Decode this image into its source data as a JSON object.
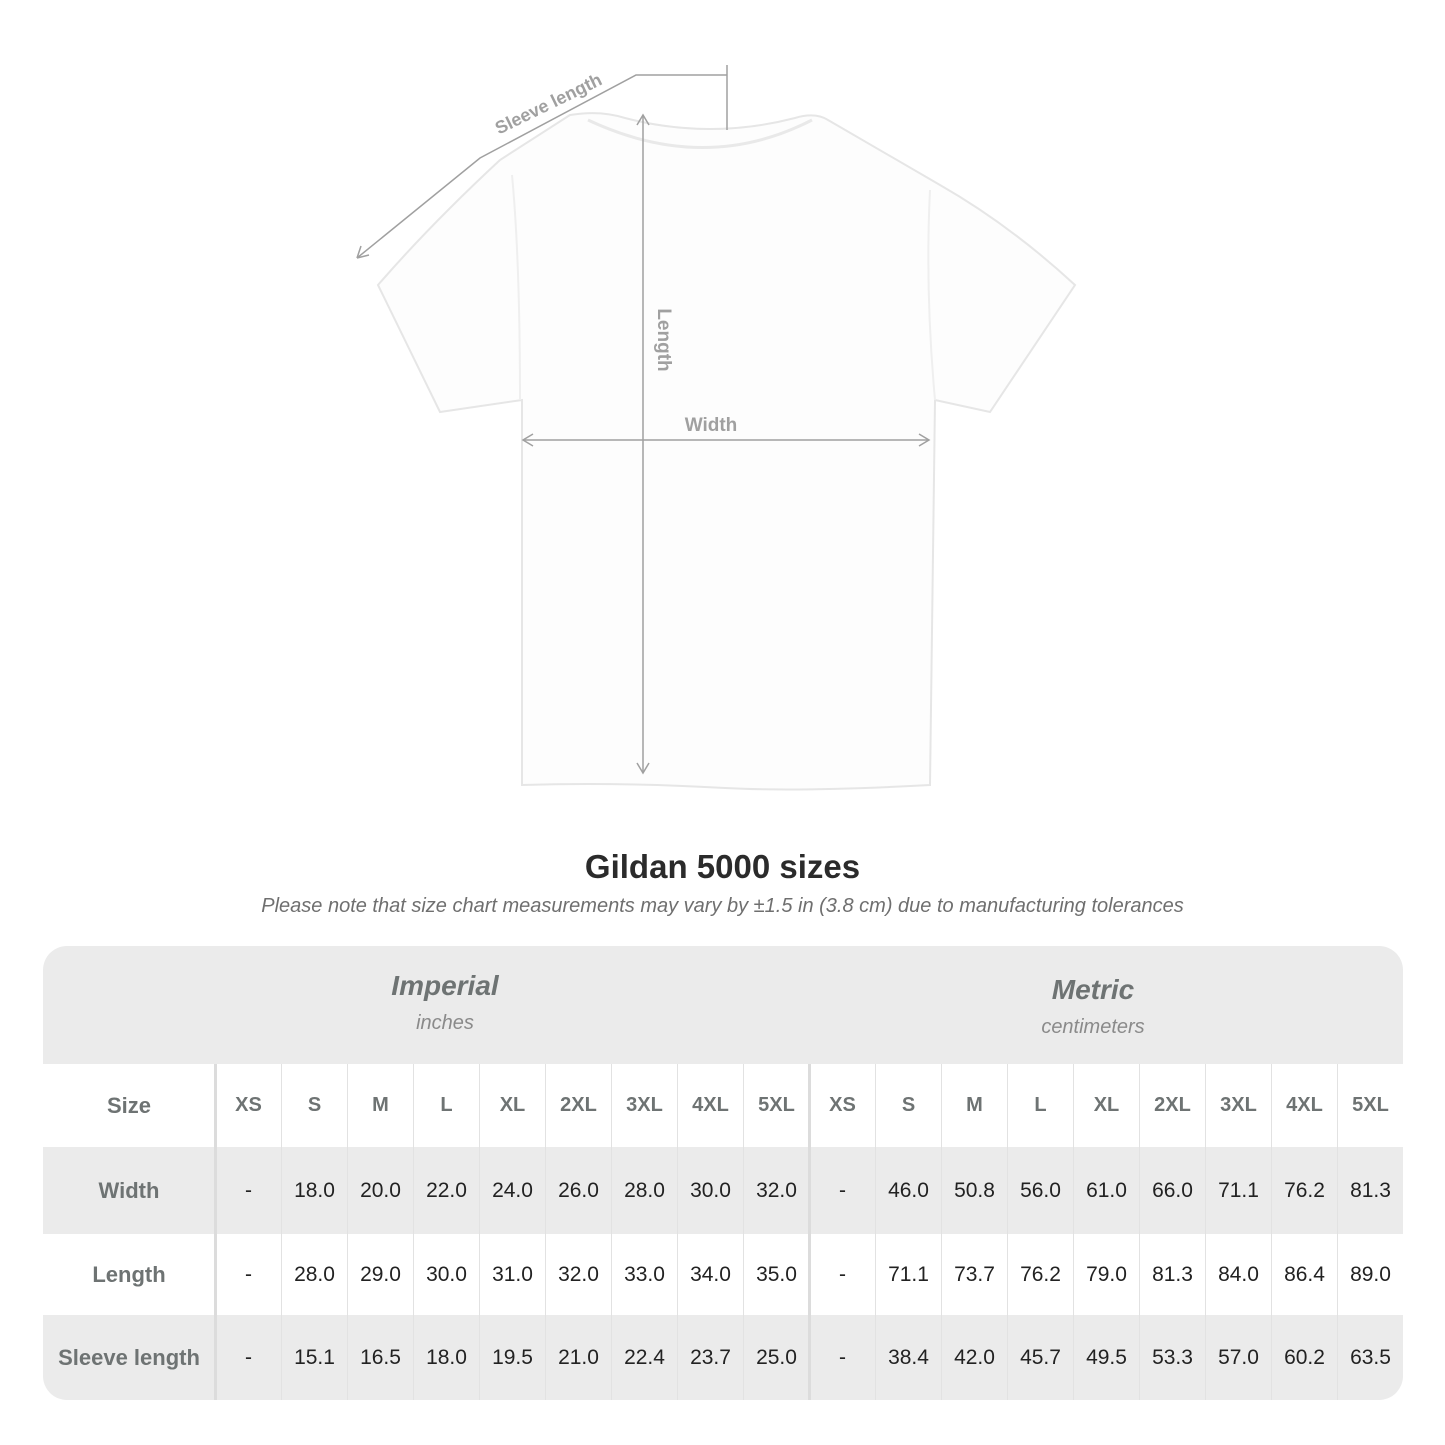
{
  "diagram": {
    "labels": {
      "sleeve": "Sleeve length",
      "length": "Length",
      "width": "Width"
    },
    "line_color": "#a0a0a0"
  },
  "title": "Gildan 5000 sizes",
  "subtitle": "Please note that size chart measurements may vary by ±1.5 in (3.8 cm) due to manufacturing tolerances",
  "table": {
    "imperial": {
      "name": "Imperial",
      "unit": "inches"
    },
    "metric": {
      "name": "Metric",
      "unit": "centimeters"
    },
    "size_label": "Size",
    "sizes": [
      "XS",
      "S",
      "M",
      "L",
      "XL",
      "2XL",
      "3XL",
      "4XL",
      "5XL"
    ],
    "rows": [
      {
        "label": "Width",
        "imperial": [
          "-",
          "18.0",
          "20.0",
          "22.0",
          "24.0",
          "26.0",
          "28.0",
          "30.0",
          "32.0"
        ],
        "metric": [
          "-",
          "46.0",
          "50.8",
          "56.0",
          "61.0",
          "66.0",
          "71.1",
          "76.2",
          "81.3"
        ]
      },
      {
        "label": "Length",
        "imperial": [
          "-",
          "28.0",
          "29.0",
          "30.0",
          "31.0",
          "32.0",
          "33.0",
          "34.0",
          "35.0"
        ],
        "metric": [
          "-",
          "71.1",
          "73.7",
          "76.2",
          "79.0",
          "81.3",
          "84.0",
          "86.4",
          "89.0"
        ]
      },
      {
        "label": "Sleeve length",
        "imperial": [
          "-",
          "15.1",
          "16.5",
          "18.0",
          "19.5",
          "21.0",
          "22.4",
          "23.7",
          "25.0"
        ],
        "metric": [
          "-",
          "38.4",
          "42.0",
          "45.7",
          "49.5",
          "53.3",
          "57.0",
          "60.2",
          "63.5"
        ]
      }
    ]
  }
}
